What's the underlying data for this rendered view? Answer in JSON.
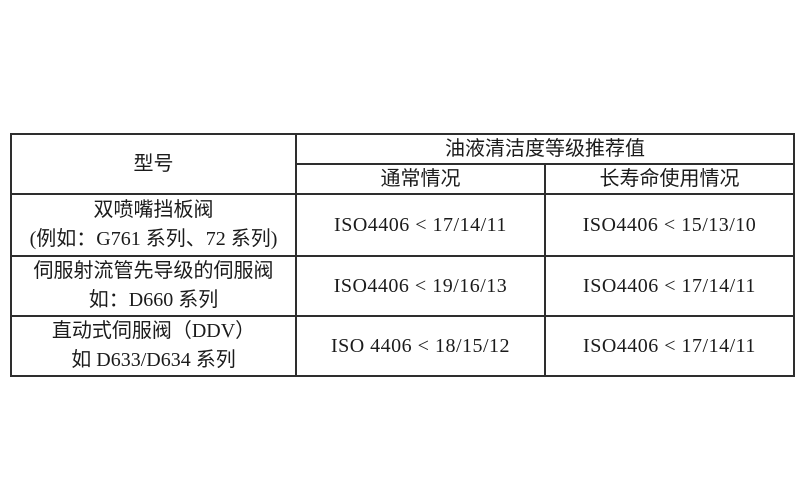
{
  "page": {
    "background_color": "#ffffff",
    "text_color": "#1b1b1b",
    "border_color": "#2e2e2e"
  },
  "table": {
    "header": {
      "model_col": "型号",
      "group_title": "油液清洁度等级推荐值",
      "normal_col": "通常情况",
      "long_life_col": "长寿命使用情况"
    },
    "rows": [
      {
        "model_line1": "双喷嘴挡板阀",
        "model_line2": "(例如：G761 系列、72 系列)",
        "normal": "ISO4406 < 17/14/11",
        "long_life": "ISO4406 < 15/13/10"
      },
      {
        "model_line1": "伺服射流管先导级的伺服阀",
        "model_line2": "如：D660 系列",
        "normal": "ISO4406 < 19/16/13",
        "long_life": "ISO4406 < 17/14/11"
      },
      {
        "model_line1": "直动式伺服阀（DDV）",
        "model_line2": "如 D633/D634 系列",
        "normal": "ISO 4406 < 18/15/12",
        "long_life": "ISO4406 < 17/14/11"
      }
    ]
  }
}
